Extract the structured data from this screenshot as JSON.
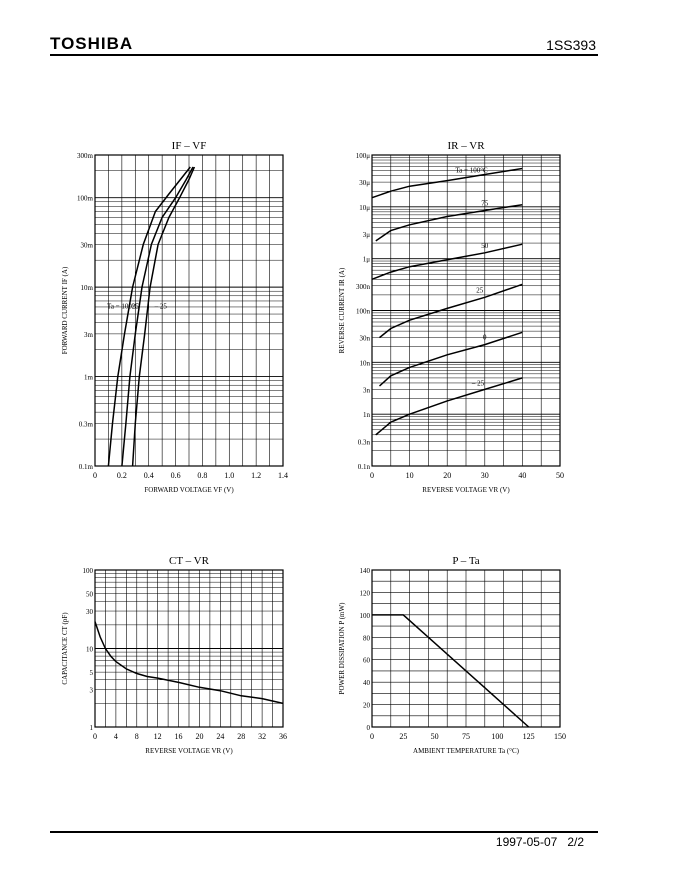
{
  "header": {
    "brand": "TOSHIBA",
    "part_number": "1SS393"
  },
  "footer": {
    "date": "1997-05-07",
    "page": "2/2"
  },
  "chart_data": [
    {
      "id": "if_vf",
      "type": "line",
      "title": "IF – VF",
      "xlabel": "FORWARD VOLTAGE  VF  (V)",
      "ylabel": "FORWARD CURRENT  IF  (A)",
      "xlim": [
        0,
        1.4
      ],
      "ylim": [
        0.0001,
        0.3
      ],
      "yscale": "log",
      "grid": true,
      "x_ticks": [
        "0",
        "0.2",
        "0.4",
        "0.6",
        "0.8",
        "1.0",
        "1.2",
        "1.4"
      ],
      "y_ticks": [
        "300m",
        "100m",
        "30m",
        "10m",
        "3m",
        "1m",
        "0.3m",
        "0.1m"
      ],
      "series_label_text": [
        "Ta = 100°C",
        "25",
        "– 25"
      ],
      "series": [
        {
          "name": "Ta = 100°C",
          "x": [
            0.1,
            0.13,
            0.17,
            0.22,
            0.28,
            0.36,
            0.45,
            0.55,
            0.65,
            0.71
          ],
          "y": [
            0.0001,
            0.0003,
            0.001,
            0.003,
            0.01,
            0.03,
            0.07,
            0.11,
            0.17,
            0.22
          ]
        },
        {
          "name": "25",
          "x": [
            0.2,
            0.23,
            0.26,
            0.3,
            0.35,
            0.42,
            0.5,
            0.6,
            0.68,
            0.73
          ],
          "y": [
            0.0001,
            0.0003,
            0.001,
            0.003,
            0.01,
            0.03,
            0.06,
            0.1,
            0.16,
            0.22
          ]
        },
        {
          "name": "– 25",
          "x": [
            0.28,
            0.3,
            0.33,
            0.37,
            0.41,
            0.47,
            0.55,
            0.63,
            0.7,
            0.74
          ],
          "y": [
            0.0001,
            0.0003,
            0.001,
            0.003,
            0.01,
            0.03,
            0.06,
            0.1,
            0.16,
            0.22
          ]
        }
      ]
    },
    {
      "id": "ir_vr",
      "type": "line",
      "title": "IR – VR",
      "xlabel": "REVERSE VOLTAGE  VR  (V)",
      "ylabel": "REVERSE CURRENT  IR  (A)",
      "xlim": [
        0,
        50
      ],
      "ylim": [
        1e-10,
        0.0001
      ],
      "yscale": "log",
      "grid": true,
      "x_ticks": [
        "0",
        "10",
        "20",
        "30",
        "40",
        "50"
      ],
      "y_ticks": [
        "100μ",
        "30μ",
        "10μ",
        "3μ",
        "1μ",
        "300n",
        "100n",
        "30n",
        "10n",
        "3n",
        "1n",
        "0.3n",
        "0.1n"
      ],
      "series": [
        {
          "name": "Ta = 100°C",
          "x": [
            0,
            5,
            10,
            20,
            30,
            40
          ],
          "y": [
            1.5e-05,
            2e-05,
            2.5e-05,
            3.2e-05,
            4.2e-05,
            5.5e-05
          ]
        },
        {
          "name": "75",
          "x": [
            1,
            5,
            10,
            20,
            30,
            40
          ],
          "y": [
            2.2e-06,
            3.5e-06,
            4.5e-06,
            6.5e-06,
            8.5e-06,
            1.1e-05
          ]
        },
        {
          "name": "50",
          "x": [
            0,
            5,
            10,
            20,
            30,
            40
          ],
          "y": [
            4e-07,
            5.5e-07,
            7e-07,
            9.5e-07,
            1.3e-06,
            1.9e-06
          ]
        },
        {
          "name": "25",
          "x": [
            2,
            5,
            10,
            20,
            30,
            40
          ],
          "y": [
            3e-08,
            4.5e-08,
            6.5e-08,
            1.1e-07,
            1.8e-07,
            3.2e-07
          ]
        },
        {
          "name": "0",
          "x": [
            2,
            5,
            10,
            20,
            30,
            40
          ],
          "y": [
            3.5e-09,
            5.5e-09,
            8e-09,
            1.4e-08,
            2.2e-08,
            3.8e-08
          ]
        },
        {
          "name": "– 25",
          "x": [
            1,
            5,
            10,
            20,
            30,
            40
          ],
          "y": [
            4e-10,
            7e-10,
            1e-09,
            1.8e-09,
            3e-09,
            5e-09
          ]
        }
      ]
    },
    {
      "id": "ct_vr",
      "type": "line",
      "title": "CT – VR",
      "xlabel": "REVERSE VOLTAGE  VR  (V)",
      "ylabel": "CAPACITANCE  CT  (pF)",
      "xlim": [
        0,
        36
      ],
      "ylim": [
        1,
        100
      ],
      "yscale": "log",
      "grid": true,
      "x_ticks": [
        "0",
        "4",
        "8",
        "12",
        "16",
        "20",
        "24",
        "28",
        "32",
        "36"
      ],
      "y_ticks": [
        "100",
        "50",
        "30",
        "10",
        "5",
        "3",
        "1"
      ],
      "series": [
        {
          "name": "CT",
          "x": [
            0,
            1,
            2,
            3,
            4,
            6,
            8,
            10,
            12,
            16,
            20,
            24,
            28,
            32,
            36
          ],
          "y": [
            22,
            14,
            10,
            8,
            6.8,
            5.5,
            4.8,
            4.4,
            4.2,
            3.7,
            3.2,
            2.9,
            2.5,
            2.3,
            2.0
          ]
        }
      ]
    },
    {
      "id": "p_ta",
      "type": "line",
      "title": "P – Ta",
      "xlabel": "AMBIENT TEMPERATURE  Ta  (°C)",
      "ylabel": "POWER DISSIPATION  P  (mW)",
      "xlim": [
        0,
        150
      ],
      "ylim": [
        0,
        140
      ],
      "grid": true,
      "x_ticks": [
        "0",
        "25",
        "50",
        "75",
        "100",
        "125",
        "150"
      ],
      "y_ticks": [
        "140",
        "120",
        "100",
        "80",
        "60",
        "40",
        "20",
        "0"
      ],
      "series": [
        {
          "name": "P",
          "x": [
            0,
            25,
            125
          ],
          "y": [
            100,
            100,
            0
          ]
        }
      ]
    }
  ]
}
